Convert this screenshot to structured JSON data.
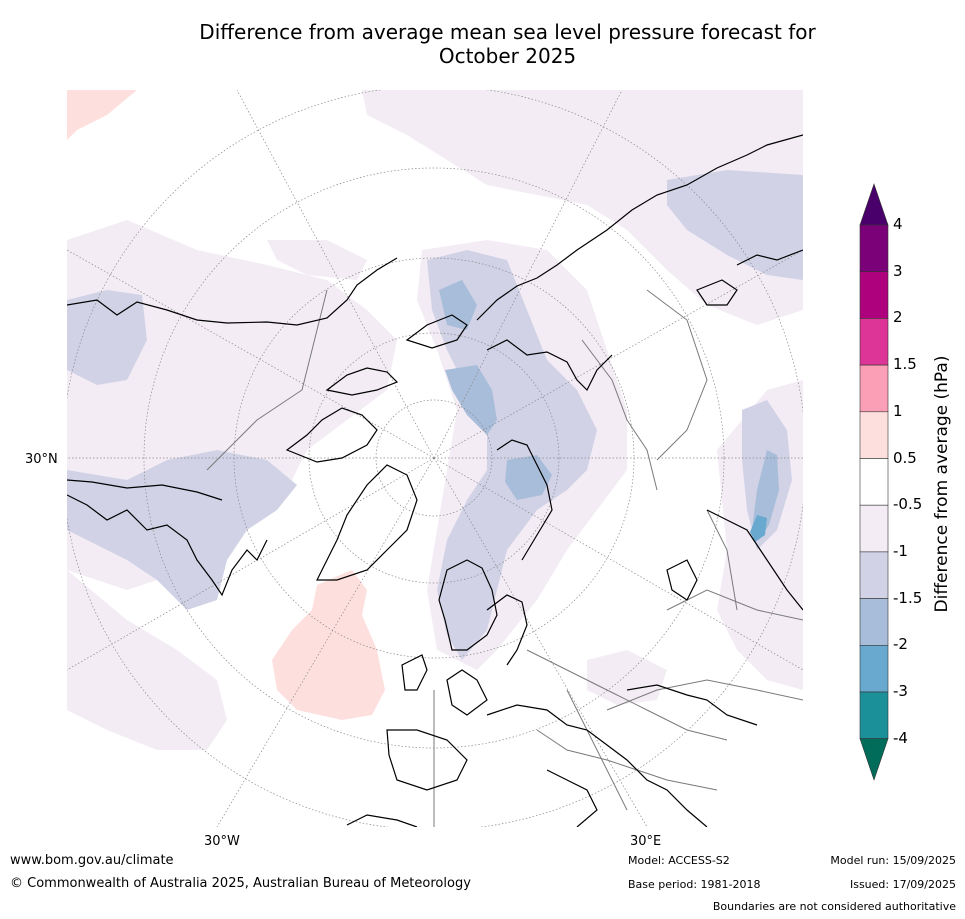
{
  "title": {
    "line1": "Difference from average mean sea level pressure forecast for",
    "line2": "October 2025"
  },
  "map": {
    "lat_label": "30°N",
    "lon_labels": {
      "west": "30°W",
      "east": "30°E"
    },
    "anomaly_colors": {
      "faint_negative": "#f3ecf5",
      "negative_1": "#d1d2e6",
      "negative_15": "#a8bdd9",
      "negative_2": "#69a9cf",
      "positive_05": "#fde0dd"
    }
  },
  "colorbar": {
    "title": "Difference from average (hPa)",
    "ticks": [
      "4",
      "3",
      "2",
      "1.5",
      "1",
      "0.5",
      "-0.5",
      "-1",
      "-1.5",
      "-2",
      "-3",
      "-4"
    ],
    "segments": [
      {
        "color": "#7a0177"
      },
      {
        "color": "#ae017e"
      },
      {
        "color": "#dd3497"
      },
      {
        "color": "#fa9fb5"
      },
      {
        "color": "#fde0dd"
      },
      {
        "color": "#ffffff"
      },
      {
        "color": "#f3ecf5"
      },
      {
        "color": "#d1d2e6"
      },
      {
        "color": "#a8bdd9"
      },
      {
        "color": "#69a9cf"
      },
      {
        "color": "#1c9099"
      }
    ],
    "over_color": "#49006a",
    "under_color": "#016c59"
  },
  "footer": {
    "website": "www.bom.gov.au/climate",
    "copyright": "© Commonwealth of Australia 2025, Australian Bureau of Meteorology",
    "model": "Model: ACCESS-S2",
    "base_period": "Base period: 1981-2018",
    "model_run": "Model run: 15/09/2025",
    "issued": "Issued: 17/09/2025",
    "disclaimer": "Boundaries are not considered authoritative"
  }
}
